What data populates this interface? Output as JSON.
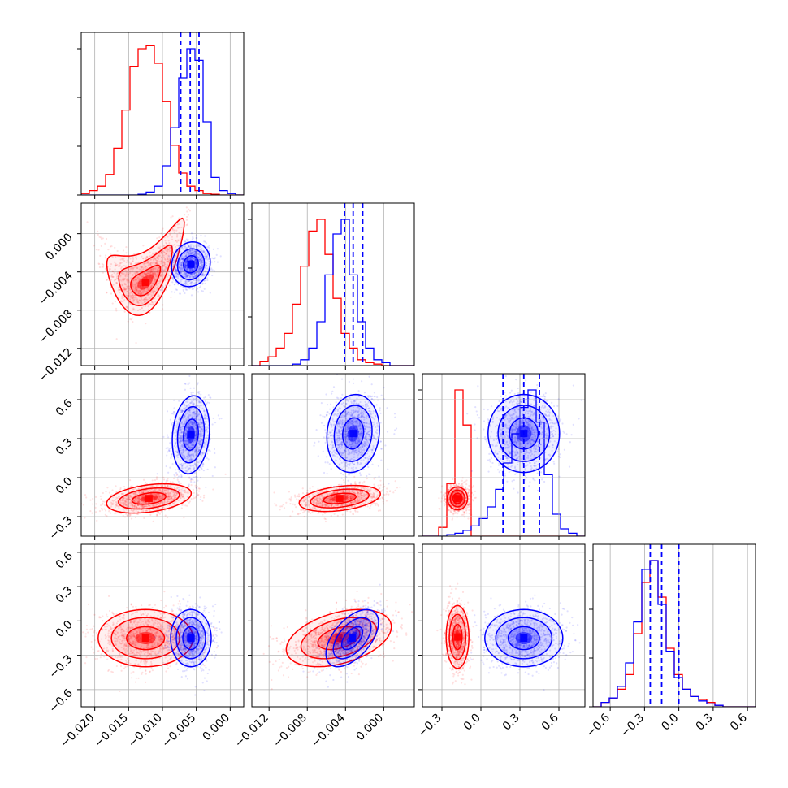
{
  "colors": {
    "red_series": "#ff0000",
    "blue_series": "#0000ff",
    "grid": "#b0b0b0",
    "frame": "#000000"
  },
  "chart_data": {
    "type": "corner",
    "series": [
      {
        "name": "",
        "color": "#ff0000"
      },
      {
        "name": "",
        "color": "#0000ff"
      }
    ],
    "parameters": [
      {
        "range": [
          -0.022,
          0.002
        ],
        "ticks": [
          -0.02,
          -0.015,
          -0.01,
          -0.005,
          0.0
        ],
        "tick_labels": [
          "−0.020",
          "−0.015",
          "−0.010",
          "−0.005",
          "0.000"
        ]
      },
      {
        "range": [
          -0.0138,
          0.0032
        ],
        "ticks": [
          -0.012,
          -0.008,
          -0.004,
          0.0
        ],
        "tick_labels": [
          "−0.012",
          "−0.008",
          "−0.004",
          "0.000"
        ]
      },
      {
        "range": [
          -0.45,
          0.8
        ],
        "ticks": [
          -0.3,
          0.0,
          0.3,
          0.6
        ],
        "tick_labels": [
          "−0.3",
          "0.0",
          "0.3",
          "0.6"
        ]
      },
      {
        "range": [
          -0.75,
          0.67
        ],
        "ticks": [
          -0.6,
          -0.3,
          0.0,
          0.3,
          0.6
        ],
        "tick_labels": [
          "−0.6",
          "−0.3",
          "0.0",
          "0.3",
          "0.6"
        ]
      }
    ],
    "blue_quantiles": [
      [
        -0.0073,
        -0.0059,
        -0.0046
      ],
      [
        -0.0041,
        -0.0032,
        -0.0022
      ],
      [
        0.17,
        0.33,
        0.45
      ],
      [
        -0.25,
        -0.15,
        0.0
      ]
    ],
    "histograms": {
      "red": [
        {
          "min": -0.022,
          "max": 0.002,
          "values": [
            0.01,
            0.03,
            0.06,
            0.14,
            0.32,
            0.58,
            0.88,
            1.0,
            1.02,
            0.9,
            0.64,
            0.34,
            0.15,
            0.06,
            0.03,
            0.01,
            0.005,
            0,
            0,
            0
          ]
        },
        {
          "min": -0.0138,
          "max": 0.0032,
          "values": [
            0,
            0.03,
            0.06,
            0.12,
            0.22,
            0.42,
            0.68,
            0.92,
            1.0,
            0.76,
            0.46,
            0.22,
            0.12,
            0.04,
            0.02,
            0.01,
            0,
            0,
            0,
            0
          ]
        },
        {
          "min": -0.45,
          "max": 0.8,
          "values": [
            0,
            0,
            0.06,
            0.36,
            1.0,
            0.76,
            0,
            0,
            0,
            0,
            0,
            0,
            0,
            0,
            0,
            0,
            0,
            0,
            0,
            0
          ]
        },
        {
          "min": -0.75,
          "max": 0.67,
          "values": [
            0,
            0.03,
            0.06,
            0.12,
            0.22,
            0.5,
            0.85,
            1.0,
            0.75,
            0.4,
            0.22,
            0.12,
            0.07,
            0.05,
            0.03,
            0.01,
            0,
            0,
            0,
            0
          ]
        }
      ],
      "blue": [
        {
          "min": -0.022,
          "max": 0.002,
          "values": [
            0,
            0,
            0,
            0,
            0,
            0,
            0,
            0.005,
            0.02,
            0.06,
            0.2,
            0.46,
            0.8,
            1.0,
            0.92,
            0.5,
            0.12,
            0.03,
            0.01,
            0
          ]
        },
        {
          "min": -0.0138,
          "max": 0.0032,
          "values": [
            0,
            0,
            0,
            0,
            0,
            0.01,
            0.04,
            0.12,
            0.3,
            0.62,
            0.9,
            1.0,
            0.62,
            0.3,
            0.12,
            0.04,
            0.02,
            0,
            0,
            0
          ]
        },
        {
          "min": -0.45,
          "max": 0.8,
          "values": [
            0,
            0,
            0,
            0.01,
            0.02,
            0.04,
            0.07,
            0.12,
            0.2,
            0.32,
            0.5,
            0.7,
            0.88,
            1.0,
            0.78,
            0.42,
            0.15,
            0.05,
            0.02,
            0
          ]
        },
        {
          "min": -0.75,
          "max": 0.67,
          "values": [
            0,
            0.03,
            0.06,
            0.14,
            0.3,
            0.58,
            0.94,
            1.0,
            0.7,
            0.38,
            0.2,
            0.12,
            0.07,
            0.04,
            0.02,
            0.01,
            0,
            0,
            0,
            0
          ]
        }
      ]
    },
    "density_panels": [
      {
        "row": 1,
        "col": 0,
        "red": {
          "cx": -0.0125,
          "cy": -0.0051,
          "sx": 0.0022,
          "sy": 0.0015,
          "rho": 0.55,
          "bend": 0.0006,
          "levels": [
            1.0,
            1.8,
            2.6
          ],
          "core": 0.9
        },
        "blue": {
          "cx": -0.0058,
          "cy": -0.0032,
          "sx": 0.0011,
          "sy": 0.0009,
          "rho": 0.1,
          "bend": 0,
          "levels": [
            1.0,
            1.8,
            2.6
          ],
          "core": 0.9
        }
      },
      {
        "row": 2,
        "col": 0,
        "red": {
          "cx": -0.012,
          "cy": -0.16,
          "sx": 0.0025,
          "sy": 0.045,
          "rho": 0.35,
          "bend": 0,
          "levels": [
            1.0,
            1.8,
            2.5
          ],
          "core": 0.9
        },
        "blue": {
          "cx": -0.0058,
          "cy": 0.33,
          "sx": 0.0011,
          "sy": 0.12,
          "rho": 0.15,
          "bend": 0,
          "levels": [
            1.0,
            1.8,
            2.5
          ],
          "core": 0.9
        }
      },
      {
        "row": 2,
        "col": 1,
        "red": {
          "cx": -0.0046,
          "cy": -0.16,
          "sx": 0.0017,
          "sy": 0.04,
          "rho": 0.35,
          "bend": 0,
          "levels": [
            1.0,
            1.8,
            2.5
          ],
          "core": 0.9
        },
        "blue": {
          "cx": -0.0032,
          "cy": 0.34,
          "sx": 0.0011,
          "sy": 0.12,
          "rho": 0.1,
          "bend": 0,
          "levels": [
            1.0,
            1.8,
            2.5
          ],
          "core": 0.9
        }
      },
      {
        "row": 2,
        "col": 2,
        "red": {
          "cx": -0.18,
          "cy": -0.16,
          "sx": 0.035,
          "sy": 0.04,
          "rho": 0.0,
          "bend": 0,
          "levels": [
            1.0,
            1.6,
            2.2
          ],
          "core": 0.8
        },
        "blue": {
          "cx": 0.33,
          "cy": 0.34,
          "sx": 0.11,
          "sy": 0.12,
          "rho": 0.0,
          "bend": 0,
          "levels": [
            1.0,
            1.8,
            2.5
          ],
          "core": 0.9
        }
      },
      {
        "row": 3,
        "col": 0,
        "red": {
          "cx": -0.0125,
          "cy": -0.15,
          "sx": 0.0028,
          "sy": 0.1,
          "rho": 0.0,
          "bend": 0,
          "levels": [
            1.0,
            1.8,
            2.5
          ],
          "core": 0.9
        },
        "blue": {
          "cx": -0.0058,
          "cy": -0.15,
          "sx": 0.0012,
          "sy": 0.1,
          "rho": 0.0,
          "bend": 0,
          "levels": [
            1.0,
            1.8,
            2.5
          ],
          "core": 0.9
        }
      },
      {
        "row": 3,
        "col": 1,
        "red": {
          "cx": -0.0047,
          "cy": -0.15,
          "sx": 0.0022,
          "sy": 0.1,
          "rho": 0.4,
          "bend": 0,
          "levels": [
            1.0,
            1.8,
            2.5
          ],
          "core": 0.9
        },
        "blue": {
          "cx": -0.0033,
          "cy": -0.15,
          "sx": 0.0011,
          "sy": 0.1,
          "rho": 0.55,
          "bend": 0,
          "levels": [
            1.0,
            1.8,
            2.5
          ],
          "core": 0.9
        }
      },
      {
        "row": 3,
        "col": 2,
        "red": {
          "cx": -0.18,
          "cy": -0.14,
          "sx": 0.035,
          "sy": 0.11,
          "rho": 0.0,
          "bend": 0,
          "levels": [
            1.0,
            1.8,
            2.5
          ],
          "core": 0.9
        },
        "blue": {
          "cx": 0.33,
          "cy": -0.15,
          "sx": 0.12,
          "sy": 0.1,
          "rho": 0.0,
          "bend": 0,
          "levels": [
            1.0,
            1.8,
            2.5
          ],
          "core": 0.9
        }
      }
    ],
    "grid": true,
    "legend": "none"
  }
}
